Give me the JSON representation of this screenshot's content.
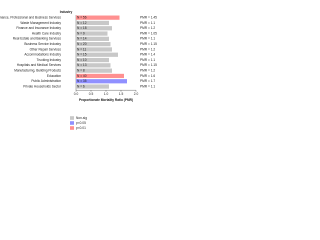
{
  "chart_data": {
    "type": "hbar",
    "heading": "Industry",
    "xlabel": "Proportionate Mortality Ratio (PMR)",
    "categories": [
      "Finance, Professional and Business Services",
      "Waste Management Industry",
      "Finance and Insurance Industry",
      "Health Care Industry",
      "Real Estate and Banking Services",
      "Business Service Industry",
      "Other Repair Services",
      "Accommodations Industry",
      "Trucking Industry",
      "Hospitals and Medical Services",
      "Manufacturing, Building Products",
      "Education",
      "Public Administration",
      "Private Households Sector"
    ],
    "values": [
      1.45,
      1.1,
      1.2,
      1.05,
      1.1,
      1.15,
      1.2,
      1.4,
      1.1,
      1.15,
      1.2,
      1.6,
      1.7,
      1.1
    ],
    "value_labels": [
      "PMR = 1.45",
      "PMR = 1.1",
      "PMR = 1.2",
      "PMR = 1.05",
      "PMR = 1.1",
      "PMR = 1.15",
      "PMR = 1.2",
      "PMR = 1.4",
      "PMR = 1.1",
      "PMR = 1.15",
      "PMR = 1.2",
      "PMR = 1.6",
      "PMR = 1.7",
      "PMR = 1.1"
    ],
    "n_labels": [
      "N = 56",
      "N = 12",
      "N = 18",
      "N = 9",
      "N = 14",
      "N = 20",
      "N = 11",
      "N = 15",
      "N = 10",
      "N = 13",
      "N = 8",
      "N = 40",
      "N = 35",
      "N = 6"
    ],
    "colors": [
      "#ff9090",
      "#c8c8c8",
      "#c8c8c8",
      "#c8c8c8",
      "#c8c8c8",
      "#c8c8c8",
      "#c8c8c8",
      "#c8c8c8",
      "#c8c8c8",
      "#c8c8c8",
      "#c8c8c8",
      "#ff9090",
      "#9090ff",
      "#c8c8c8"
    ],
    "xlim": [
      0,
      2
    ],
    "xticks": [
      {
        "value": 0,
        "label": "0.0"
      },
      {
        "value": 0.5,
        "label": "0.5"
      },
      {
        "value": 1,
        "label": "1.0"
      },
      {
        "value": 1.5,
        "label": "1.5"
      },
      {
        "value": 2,
        "label": "2.0"
      }
    ],
    "legend": [
      {
        "name": "Non-sig",
        "color": "#c8c8c8"
      },
      {
        "name": "p<0.05",
        "color": "#9090ff"
      },
      {
        "name": "p<0.01",
        "color": "#ff9090"
      }
    ]
  }
}
